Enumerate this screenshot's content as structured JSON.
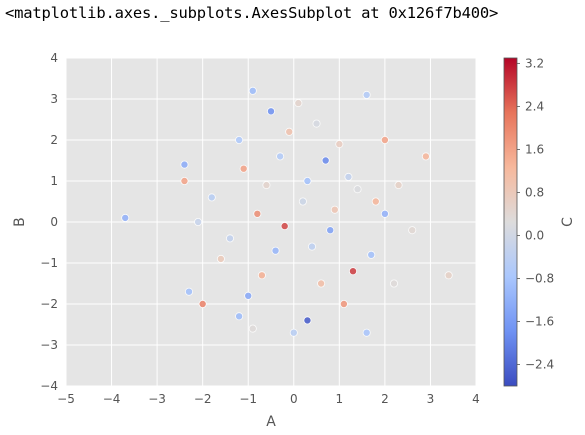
{
  "output_repr": "<matplotlib.axes._subplots.AxesSubplot at 0x126f7b400>",
  "colors": {
    "axes_facecolor": "#e5e5e5",
    "grid": "#ffffff",
    "text": "#555555",
    "colormap": "coolwarm",
    "colormap_stops": [
      "#3b4cc0",
      "#6f92f3",
      "#aac7fd",
      "#dddcdc",
      "#f7b89c",
      "#e7745b",
      "#b40426"
    ]
  },
  "chart_data": {
    "type": "scatter",
    "title": "",
    "xlabel": "A",
    "ylabel": "B",
    "xlim": [
      -5,
      4
    ],
    "ylim": [
      -4,
      4
    ],
    "xticks": [
      "−5",
      "−4",
      "−3",
      "−2",
      "−1",
      "0",
      "1",
      "2",
      "3",
      "4"
    ],
    "yticks": [
      "4",
      "3",
      "2",
      "1",
      "0",
      "−1",
      "−2",
      "−3",
      "−4"
    ],
    "grid": true,
    "colorbar": {
      "label": "C",
      "range": [
        -2.8,
        3.3
      ],
      "ticks": [
        "3.2",
        "2.4",
        "1.6",
        "0.8",
        "0.0",
        "−0.8",
        "−1.6",
        "−2.4"
      ]
    },
    "points": [
      [
        -3.7,
        0.1,
        -1.2
      ],
      [
        3.4,
        -1.3,
        0.6
      ],
      [
        2.9,
        1.6,
        1.3
      ],
      [
        2.6,
        -0.2,
        0.4
      ],
      [
        1.6,
        3.1,
        -0.6
      ],
      [
        -0.9,
        3.2,
        -1.0
      ],
      [
        -0.5,
        2.7,
        -1.8
      ],
      [
        0.1,
        2.9,
        0.5
      ],
      [
        -2.4,
        1.4,
        -1.3
      ],
      [
        -2.4,
        1.0,
        1.6
      ],
      [
        -2.3,
        -1.7,
        -0.9
      ],
      [
        -2.0,
        -2.0,
        2.1
      ],
      [
        -1.2,
        -2.3,
        -1.0
      ],
      [
        -0.9,
        -2.6,
        0.3
      ],
      [
        0.3,
        -2.4,
        -2.6
      ],
      [
        0.0,
        -2.7,
        -0.5
      ],
      [
        1.1,
        -2.0,
        1.8
      ],
      [
        1.3,
        -1.2,
        2.8
      ],
      [
        1.6,
        -2.7,
        -0.8
      ],
      [
        0.7,
        1.5,
        -1.9
      ],
      [
        2.0,
        2.0,
        1.6
      ],
      [
        -0.2,
        -0.1,
        2.7
      ],
      [
        -1.1,
        1.3,
        1.6
      ],
      [
        2.0,
        0.2,
        -1.2
      ],
      [
        -0.6,
        0.9,
        0.5
      ],
      [
        0.4,
        -0.6,
        -0.4
      ],
      [
        0.9,
        0.3,
        0.9
      ],
      [
        -1.4,
        -0.4,
        -0.3
      ],
      [
        1.4,
        0.8,
        0.2
      ],
      [
        -0.3,
        1.6,
        -0.6
      ],
      [
        0.6,
        -1.5,
        1.1
      ],
      [
        -1.8,
        0.6,
        -0.5
      ],
      [
        1.7,
        -0.8,
        -0.9
      ],
      [
        -0.7,
        -1.3,
        1.4
      ],
      [
        0.2,
        0.5,
        -0.1
      ],
      [
        1.0,
        1.9,
        0.7
      ],
      [
        -1.2,
        2.0,
        -0.7
      ],
      [
        2.2,
        -1.5,
        0.3
      ],
      [
        -0.1,
        2.2,
        1.0
      ],
      [
        0.8,
        -0.2,
        -1.5
      ],
      [
        -1.6,
        -0.9,
        0.8
      ],
      [
        1.2,
        1.1,
        -0.3
      ],
      [
        -0.4,
        -0.7,
        -1.1
      ],
      [
        0.5,
        2.4,
        0.1
      ],
      [
        -2.1,
        0.0,
        -0.2
      ],
      [
        1.8,
        0.5,
        1.3
      ],
      [
        -0.8,
        0.2,
        1.9
      ],
      [
        0.3,
        1.0,
        -0.9
      ],
      [
        2.3,
        0.9,
        0.6
      ],
      [
        -1.0,
        -1.8,
        -1.4
      ]
    ]
  }
}
